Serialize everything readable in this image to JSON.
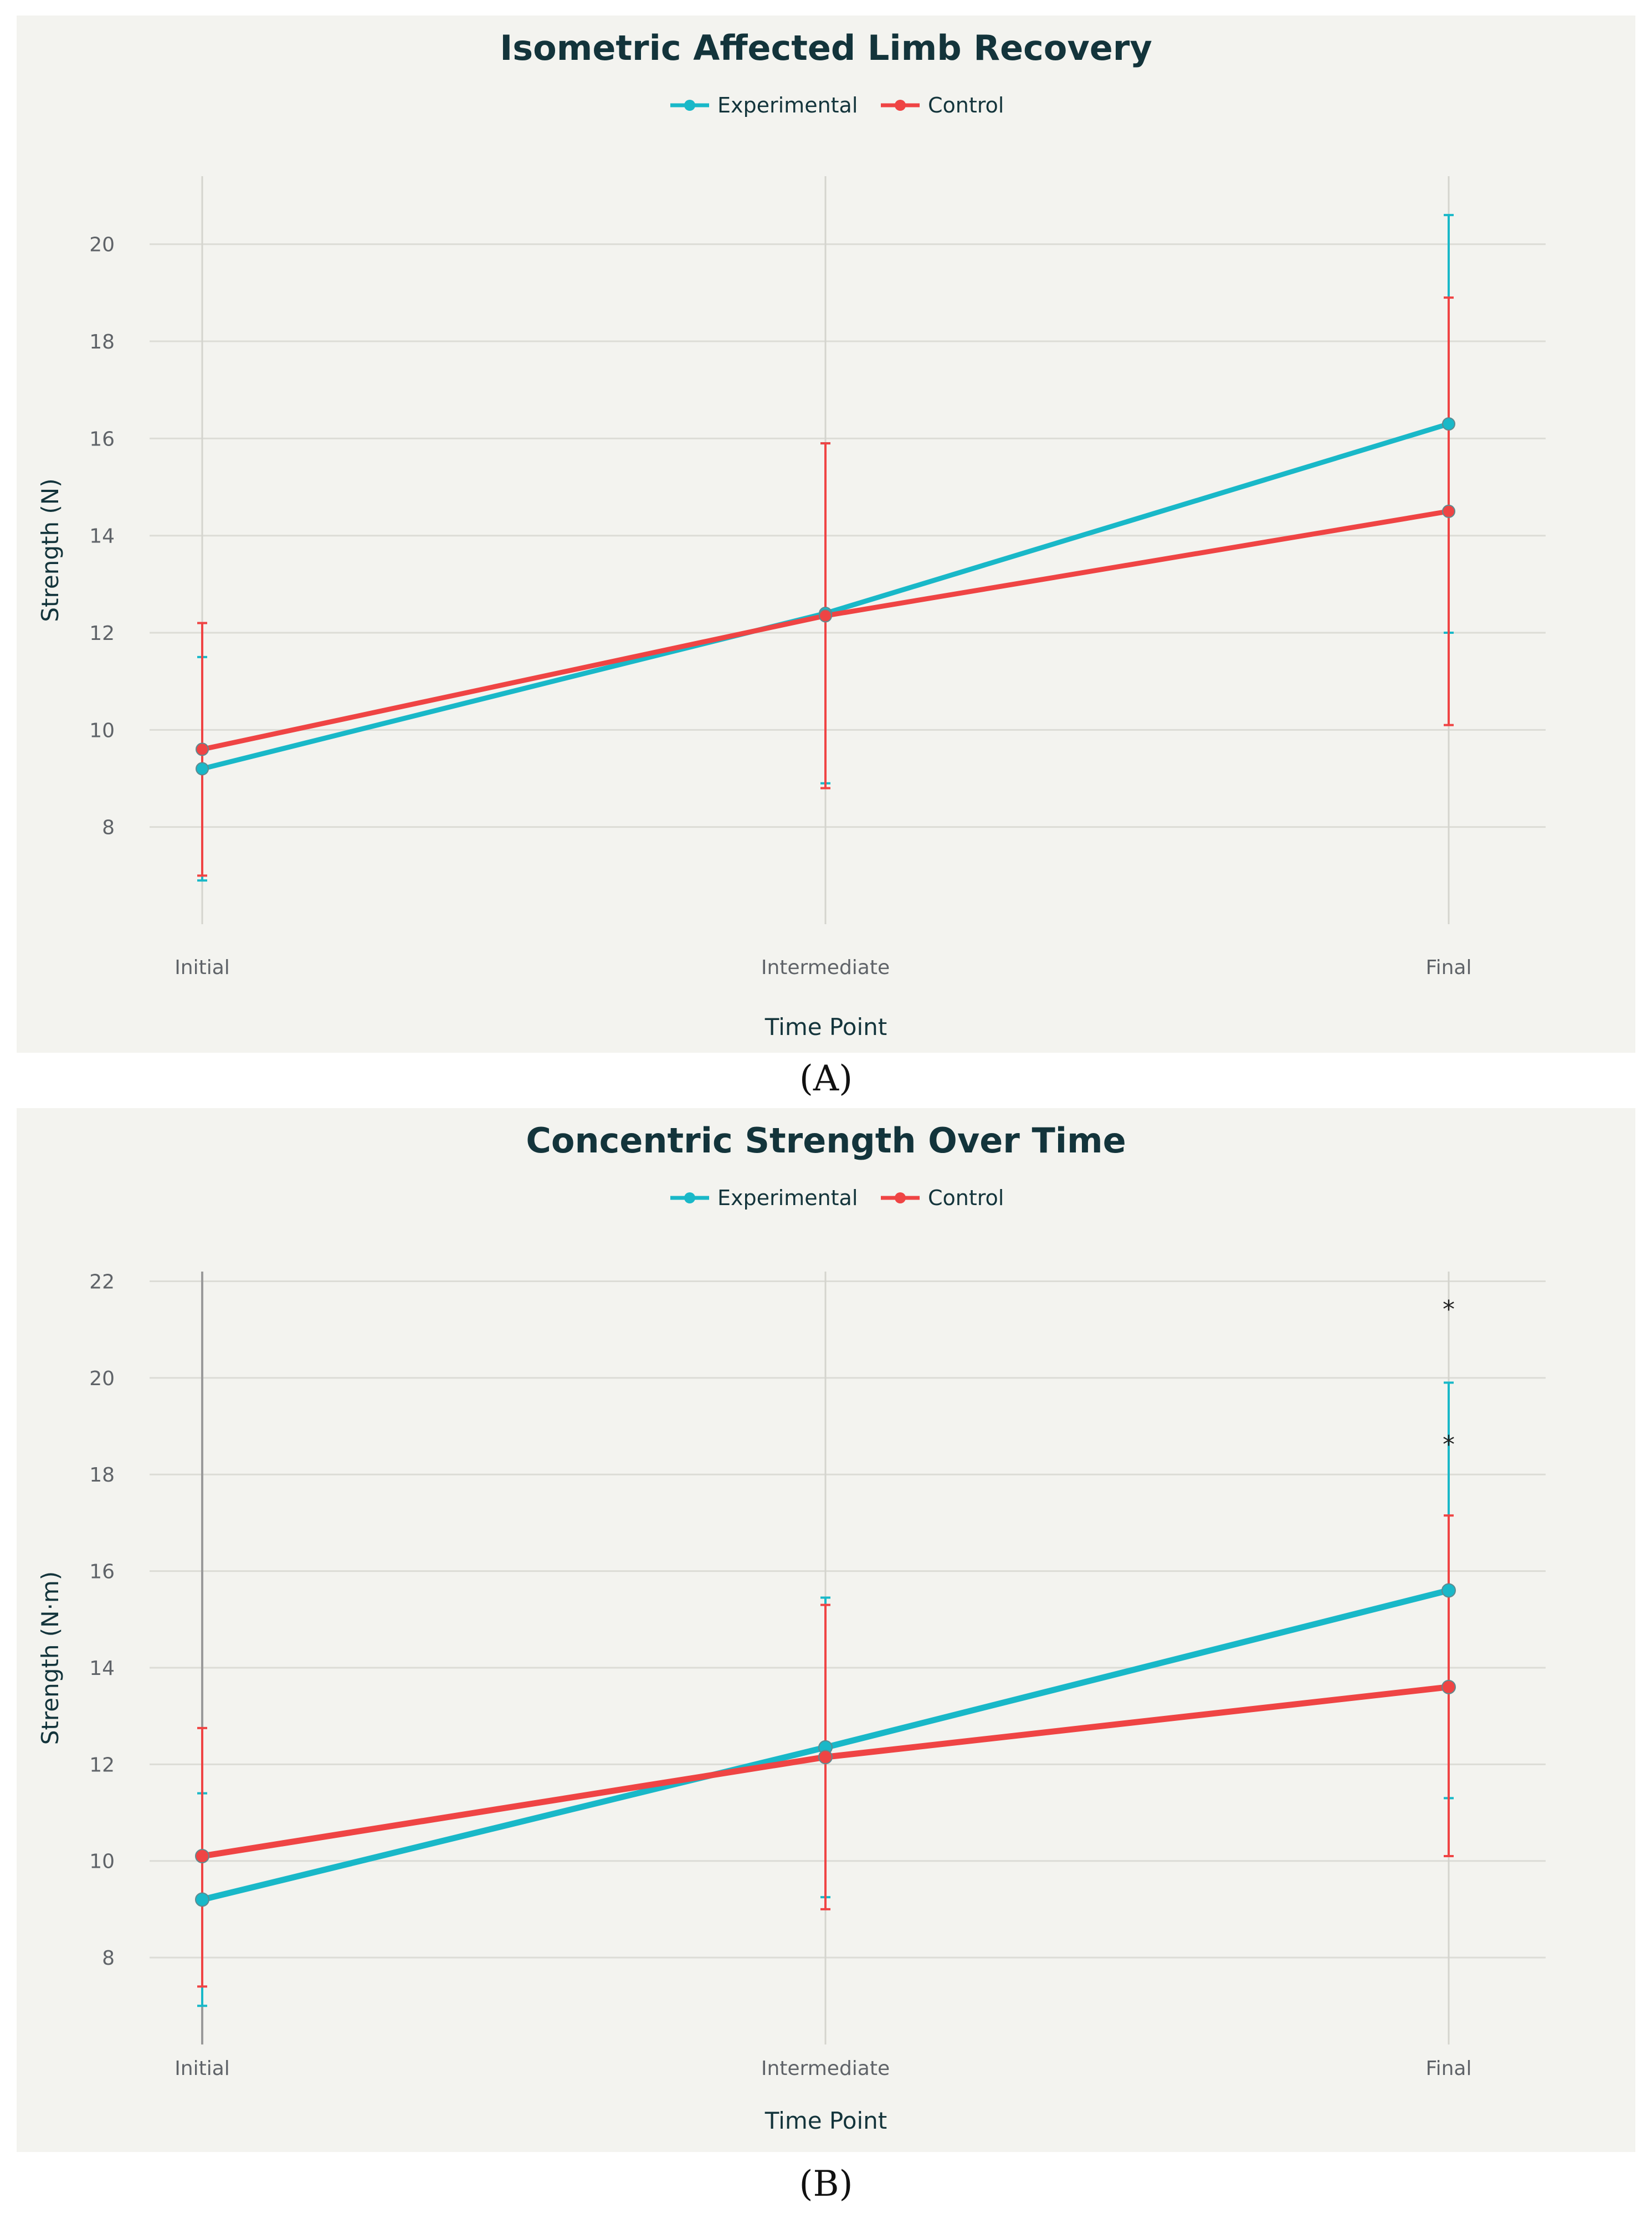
{
  "colors": {
    "experimental": "#19b8c8",
    "control": "#ef4444",
    "zero_line": "#9a9a9a"
  },
  "chart_data": [
    {
      "type": "line",
      "title": "Isometric Affected Limb Recovery",
      "caption": "(A)",
      "xlabel": "Time Point",
      "ylabel": "Strength (N)",
      "categories": [
        "Initial",
        "Intermediate",
        "Final"
      ],
      "ylim": [
        6.0,
        21.4
      ],
      "yticks": [
        8,
        10,
        12,
        14,
        16,
        18,
        20
      ],
      "legend": {
        "position": "top-center",
        "entries": [
          "Experimental",
          "Control"
        ]
      },
      "series": [
        {
          "name": "Experimental",
          "color": "#19b8c8",
          "values": [
            9.2,
            12.4,
            16.3
          ],
          "err_low": [
            6.9,
            8.9,
            12.0
          ],
          "err_high": [
            11.5,
            15.9,
            20.6
          ]
        },
        {
          "name": "Control",
          "color": "#ef4444",
          "values": [
            9.6,
            12.35,
            14.5
          ],
          "err_low": [
            7.0,
            8.8,
            10.1
          ],
          "err_high": [
            12.2,
            15.9,
            18.9
          ]
        }
      ],
      "annotations": []
    },
    {
      "type": "line",
      "title": "Concentric Strength Over Time",
      "caption": "(B)",
      "xlabel": "Time Point",
      "ylabel": "Strength (N·m)",
      "categories": [
        "Initial",
        "Intermediate",
        "Final"
      ],
      "ylim": [
        6.2,
        22.2
      ],
      "yticks": [
        8,
        10,
        12,
        14,
        16,
        18,
        20,
        22
      ],
      "legend": {
        "position": "top-center",
        "entries": [
          "Experimental",
          "Control"
        ]
      },
      "series": [
        {
          "name": "Experimental",
          "color": "#19b8c8",
          "values": [
            9.2,
            12.35,
            15.6
          ],
          "err_low": [
            7.0,
            9.25,
            11.3
          ],
          "err_high": [
            11.4,
            15.45,
            19.9
          ]
        },
        {
          "name": "Control",
          "color": "#ef4444",
          "values": [
            10.1,
            12.15,
            13.6
          ],
          "err_low": [
            7.4,
            9.0,
            10.1
          ],
          "err_high": [
            12.75,
            15.3,
            17.15
          ]
        }
      ],
      "annotations": [
        {
          "text": "*",
          "category": "Final",
          "y": 21.5
        },
        {
          "text": "*",
          "category": "Final",
          "y": 18.7
        }
      ]
    }
  ]
}
